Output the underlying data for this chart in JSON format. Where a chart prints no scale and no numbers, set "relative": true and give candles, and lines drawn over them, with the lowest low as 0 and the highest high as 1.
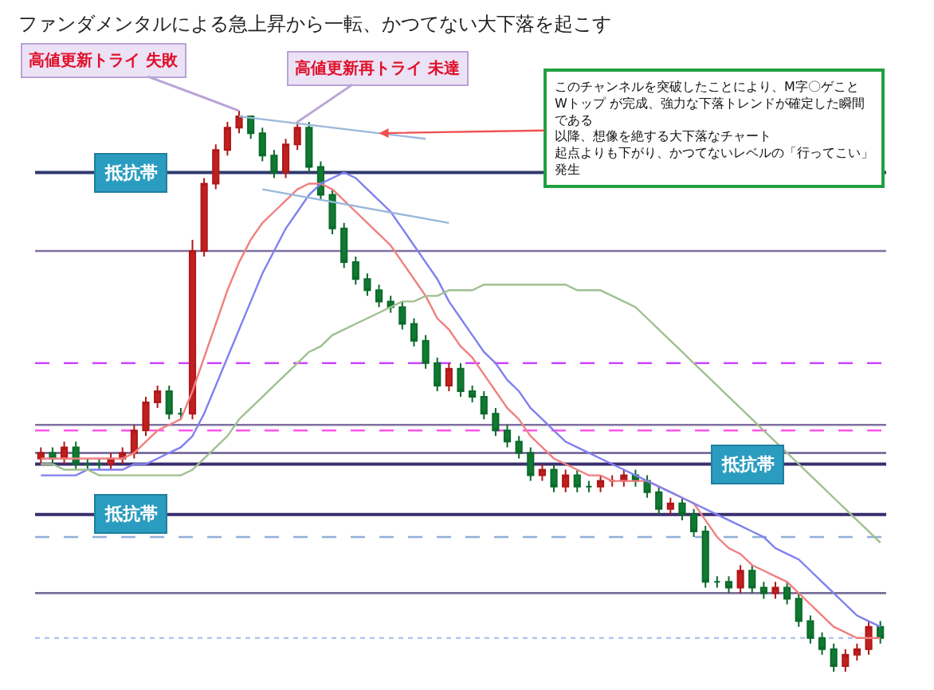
{
  "chart_data": {
    "type": "candlestick",
    "relative": true,
    "title": "ファンダメンタルによる急上昇から一転、かつてない大下落を起こす",
    "categories": [
      null,
      null,
      null,
      null,
      null,
      null,
      null,
      null,
      null,
      null,
      null,
      null,
      null,
      null,
      null,
      null,
      null,
      null,
      null,
      null,
      null,
      null,
      null,
      null,
      null,
      null,
      null,
      null,
      null,
      null,
      null,
      null,
      null,
      null,
      null,
      null,
      null,
      null,
      null,
      null,
      null,
      null,
      null,
      null,
      null,
      null,
      null,
      null,
      null,
      null,
      null,
      null,
      null,
      null,
      null,
      null,
      null,
      null,
      null,
      null,
      null,
      null,
      null,
      null,
      null,
      null,
      null,
      null,
      null,
      null,
      null,
      null,
      null
    ],
    "ohlc": [
      [
        0.38,
        0.4,
        0.37,
        0.39
      ],
      [
        0.39,
        0.4,
        0.37,
        0.38
      ],
      [
        0.38,
        0.41,
        0.37,
        0.4
      ],
      [
        0.4,
        0.41,
        0.36,
        0.37
      ],
      [
        0.37,
        0.38,
        0.36,
        0.37
      ],
      [
        0.37,
        0.38,
        0.36,
        0.37
      ],
      [
        0.37,
        0.39,
        0.36,
        0.38
      ],
      [
        0.38,
        0.4,
        0.37,
        0.39
      ],
      [
        0.39,
        0.44,
        0.38,
        0.43
      ],
      [
        0.43,
        0.49,
        0.42,
        0.48
      ],
      [
        0.48,
        0.51,
        0.47,
        0.5
      ],
      [
        0.5,
        0.51,
        0.45,
        0.46
      ],
      [
        0.46,
        0.47,
        0.45,
        0.46
      ],
      [
        0.46,
        0.77,
        0.45,
        0.75
      ],
      [
        0.75,
        0.88,
        0.74,
        0.87
      ],
      [
        0.87,
        0.94,
        0.86,
        0.93
      ],
      [
        0.93,
        0.98,
        0.92,
        0.97
      ],
      [
        0.97,
        1.0,
        0.96,
        0.99
      ],
      [
        0.99,
        0.99,
        0.95,
        0.96
      ],
      [
        0.96,
        0.97,
        0.91,
        0.92
      ],
      [
        0.92,
        0.93,
        0.88,
        0.89
      ],
      [
        0.89,
        0.95,
        0.88,
        0.94
      ],
      [
        0.94,
        0.98,
        0.93,
        0.97
      ],
      [
        0.97,
        0.98,
        0.89,
        0.9
      ],
      [
        0.9,
        0.91,
        0.84,
        0.85
      ],
      [
        0.85,
        0.86,
        0.78,
        0.79
      ],
      [
        0.79,
        0.8,
        0.72,
        0.73
      ],
      [
        0.73,
        0.74,
        0.69,
        0.7
      ],
      [
        0.7,
        0.71,
        0.67,
        0.68
      ],
      [
        0.68,
        0.69,
        0.65,
        0.66
      ],
      [
        0.66,
        0.67,
        0.64,
        0.65
      ],
      [
        0.65,
        0.66,
        0.61,
        0.62
      ],
      [
        0.62,
        0.63,
        0.58,
        0.59
      ],
      [
        0.59,
        0.6,
        0.54,
        0.55
      ],
      [
        0.55,
        0.56,
        0.5,
        0.51
      ],
      [
        0.51,
        0.55,
        0.5,
        0.54
      ],
      [
        0.54,
        0.55,
        0.49,
        0.5
      ],
      [
        0.5,
        0.51,
        0.48,
        0.49
      ],
      [
        0.49,
        0.5,
        0.45,
        0.46
      ],
      [
        0.46,
        0.47,
        0.42,
        0.43
      ],
      [
        0.43,
        0.44,
        0.4,
        0.41
      ],
      [
        0.41,
        0.42,
        0.38,
        0.39
      ],
      [
        0.39,
        0.4,
        0.34,
        0.35
      ],
      [
        0.35,
        0.37,
        0.34,
        0.36
      ],
      [
        0.36,
        0.37,
        0.32,
        0.33
      ],
      [
        0.33,
        0.36,
        0.32,
        0.35
      ],
      [
        0.35,
        0.36,
        0.32,
        0.33
      ],
      [
        0.33,
        0.34,
        0.32,
        0.33
      ],
      [
        0.33,
        0.35,
        0.32,
        0.34
      ],
      [
        0.34,
        0.35,
        0.33,
        0.34
      ],
      [
        0.34,
        0.36,
        0.33,
        0.35
      ],
      [
        0.35,
        0.36,
        0.33,
        0.34
      ],
      [
        0.34,
        0.35,
        0.31,
        0.32
      ],
      [
        0.32,
        0.33,
        0.28,
        0.29
      ],
      [
        0.29,
        0.31,
        0.28,
        0.3
      ],
      [
        0.3,
        0.31,
        0.27,
        0.28
      ],
      [
        0.28,
        0.29,
        0.24,
        0.25
      ],
      [
        0.25,
        0.26,
        0.15,
        0.16
      ],
      [
        0.16,
        0.17,
        0.15,
        0.16
      ],
      [
        0.16,
        0.17,
        0.14,
        0.15
      ],
      [
        0.15,
        0.19,
        0.14,
        0.18
      ],
      [
        0.18,
        0.19,
        0.14,
        0.15
      ],
      [
        0.15,
        0.16,
        0.13,
        0.14
      ],
      [
        0.14,
        0.16,
        0.13,
        0.15
      ],
      [
        0.15,
        0.16,
        0.12,
        0.13
      ],
      [
        0.13,
        0.14,
        0.08,
        0.09
      ],
      [
        0.09,
        0.1,
        0.05,
        0.06
      ],
      [
        0.06,
        0.07,
        0.03,
        0.04
      ],
      [
        0.04,
        0.05,
        0,
        0.01
      ],
      [
        0.01,
        0.04,
        0,
        0.03
      ],
      [
        0.03,
        0.05,
        0.02,
        0.04
      ],
      [
        0.04,
        0.09,
        0.03,
        0.08
      ],
      [
        0.08,
        0.09,
        0.05,
        0.06
      ]
    ],
    "series": [
      {
        "type": "line",
        "color": "#f08080",
        "values": [
          0.38,
          0.38,
          0.38,
          0.38,
          0.38,
          0.38,
          0.38,
          0.38,
          0.39,
          0.41,
          0.43,
          0.44,
          0.45,
          0.5,
          0.56,
          0.62,
          0.68,
          0.73,
          0.77,
          0.8,
          0.82,
          0.84,
          0.86,
          0.87,
          0.87,
          0.86,
          0.84,
          0.82,
          0.8,
          0.78,
          0.76,
          0.73,
          0.7,
          0.67,
          0.63,
          0.61,
          0.58,
          0.56,
          0.53,
          0.5,
          0.47,
          0.45,
          0.42,
          0.4,
          0.38,
          0.37,
          0.36,
          0.35,
          0.35,
          0.34,
          0.34,
          0.34,
          0.34,
          0.33,
          0.32,
          0.31,
          0.3,
          0.27,
          0.24,
          0.22,
          0.21,
          0.19,
          0.18,
          0.17,
          0.16,
          0.14,
          0.12,
          0.1,
          0.08,
          0.07,
          0.06,
          0.06,
          0.06
        ]
      },
      {
        "type": "line",
        "color": "#8080f0",
        "values": [
          0.35,
          0.35,
          0.35,
          0.35,
          0.36,
          0.36,
          0.36,
          0.36,
          0.37,
          0.37,
          0.38,
          0.39,
          0.4,
          0.42,
          0.46,
          0.51,
          0.56,
          0.61,
          0.66,
          0.71,
          0.75,
          0.79,
          0.82,
          0.85,
          0.87,
          0.88,
          0.89,
          0.88,
          0.86,
          0.84,
          0.82,
          0.79,
          0.76,
          0.73,
          0.7,
          0.66,
          0.63,
          0.6,
          0.57,
          0.55,
          0.52,
          0.5,
          0.47,
          0.45,
          0.43,
          0.41,
          0.4,
          0.39,
          0.38,
          0.37,
          0.36,
          0.35,
          0.34,
          0.33,
          0.32,
          0.31,
          0.3,
          0.29,
          0.28,
          0.27,
          0.26,
          0.25,
          0.24,
          0.22,
          0.21,
          0.2,
          0.18,
          0.16,
          0.14,
          0.12,
          0.1,
          0.09,
          0.08
        ]
      },
      {
        "type": "line",
        "color": "#a0c090",
        "values": [
          0.37,
          0.37,
          0.36,
          0.36,
          0.36,
          0.35,
          0.35,
          0.35,
          0.35,
          0.35,
          0.35,
          0.35,
          0.35,
          0.36,
          0.38,
          0.4,
          0.42,
          0.45,
          0.47,
          0.49,
          0.51,
          0.53,
          0.55,
          0.57,
          0.58,
          0.6,
          0.61,
          0.62,
          0.63,
          0.64,
          0.65,
          0.66,
          0.66,
          0.67,
          0.67,
          0.68,
          0.68,
          0.68,
          0.69,
          0.69,
          0.69,
          0.69,
          0.69,
          0.69,
          0.69,
          0.69,
          0.68,
          0.68,
          0.68,
          0.67,
          0.66,
          0.65,
          0.63,
          0.61,
          0.59,
          0.57,
          0.55,
          0.53,
          0.51,
          0.49,
          0.47,
          0.45,
          0.43,
          0.41,
          0.39,
          0.37,
          0.35,
          0.33,
          0.31,
          0.29,
          0.27,
          0.25,
          0.23
        ]
      },
      {
        "type": "line",
        "color": "#9ab8dc",
        "values": [
          null,
          null,
          null,
          null,
          null,
          null,
          null,
          null,
          null,
          null,
          null,
          null,
          null,
          null,
          null,
          null,
          null,
          0.99,
          null,
          null,
          null,
          null,
          null,
          null,
          null,
          null,
          null,
          null,
          null,
          null,
          null,
          null,
          null,
          0.95,
          null,
          null,
          null,
          null,
          null,
          null,
          null,
          null,
          null,
          null,
          null,
          null,
          null,
          null,
          null,
          null,
          null,
          null,
          null,
          null,
          null,
          null,
          null,
          null,
          null,
          null,
          null,
          null,
          null,
          null,
          null,
          null,
          null,
          null,
          null,
          null,
          null,
          null,
          null
        ]
      },
      {
        "type": "line",
        "color": "#9ab8dc",
        "values": [
          null,
          null,
          null,
          null,
          null,
          null,
          null,
          null,
          null,
          null,
          null,
          null,
          null,
          null,
          null,
          null,
          null,
          null,
          null,
          0.86,
          null,
          null,
          null,
          null,
          null,
          null,
          null,
          null,
          null,
          null,
          null,
          null,
          null,
          null,
          null,
          0.8,
          null,
          null,
          null,
          null,
          null,
          null,
          null,
          null,
          null,
          null,
          null,
          null,
          null,
          null,
          null,
          null,
          null,
          null,
          null,
          null,
          null,
          null,
          null,
          null,
          null,
          null,
          null,
          null,
          null,
          null,
          null,
          null,
          null,
          null,
          null,
          null,
          null
        ]
      }
    ],
    "ref_lines": [
      {
        "axis": "y",
        "value": 0.89,
        "label": "抵抗帯",
        "color": "#2e3a6e",
        "line_style": "solid"
      },
      {
        "axis": "y",
        "value": 0.75,
        "color": "#8070a0",
        "line_style": "solid"
      },
      {
        "axis": "y",
        "value": 0.55,
        "color": "#cc44ff",
        "line_style": "dashed"
      },
      {
        "axis": "y",
        "value": 0.44,
        "color": "#8070a0",
        "line_style": "solid"
      },
      {
        "axis": "y",
        "value": 0.43,
        "color": "#ff55ee",
        "line_style": "dashed"
      },
      {
        "axis": "y",
        "value": 0.39,
        "color": "#6a5a90",
        "line_style": "solid"
      },
      {
        "axis": "y",
        "value": 0.37,
        "label": "抵抗帯",
        "color": "#3a2e6e",
        "line_style": "solid"
      },
      {
        "axis": "y",
        "value": 0.28,
        "label": "抵抗帯",
        "color": "#3a2e6e",
        "line_style": "solid"
      },
      {
        "axis": "y",
        "value": 0.24,
        "color": "#8fb0d8",
        "line_style": "dashed"
      },
      {
        "axis": "y",
        "value": 0.14,
        "color": "#7a6f98",
        "line_style": "solid"
      },
      {
        "axis": "y",
        "value": 0.06,
        "color": "#b8c4f0",
        "line_style": "dotted"
      }
    ],
    "annotations": [
      "高値更新トライ 失敗",
      "高値更新再トライ 未達",
      "このチャンネルを突破したことにより、M字〇ゲこと\nWトップ が完成、強力な下落トレンドが確定した瞬間である",
      "以降、想像を絶する大下落なチャート",
      "起点よりも下がり、かつてないレベルの「行ってこい」発生"
    ]
  }
}
